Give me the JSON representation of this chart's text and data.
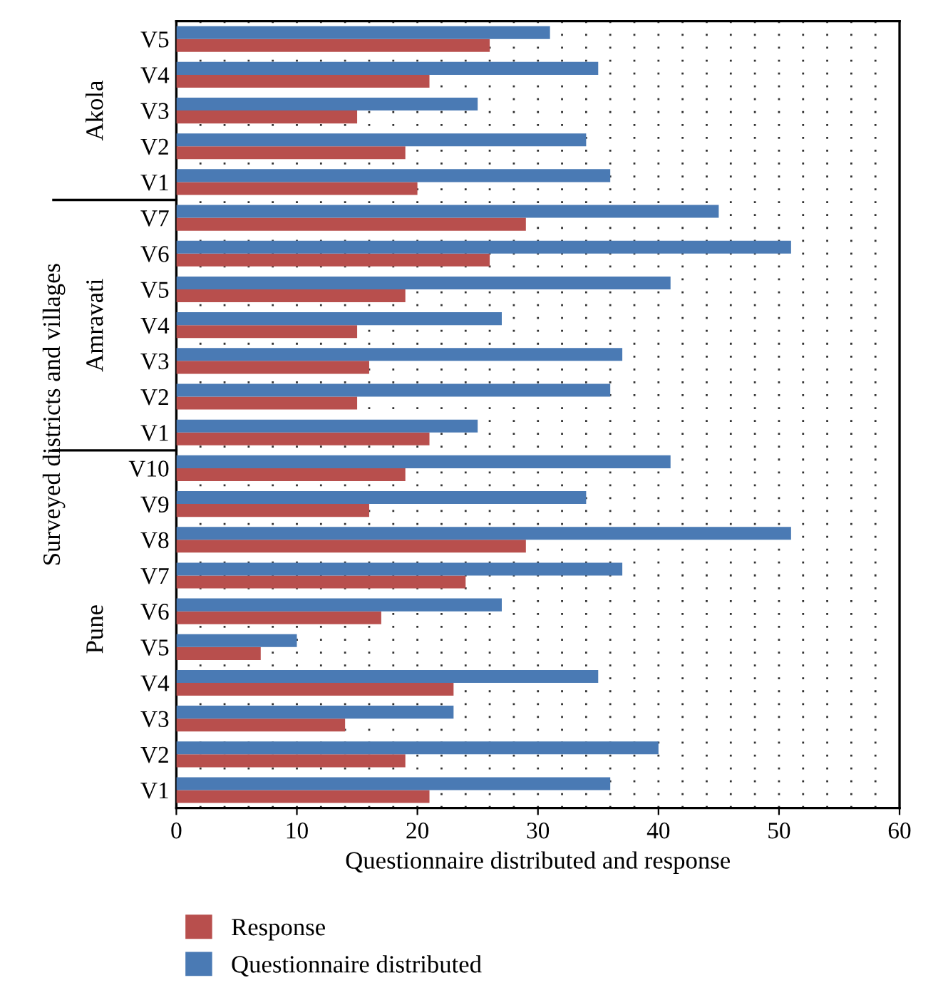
{
  "chart_data": {
    "type": "bar",
    "orientation": "horizontal",
    "xlabel": "Questionnaire distributed and response",
    "ylabel": "Surveyed districts and villages",
    "categories": [
      "V5",
      "V4",
      "V3",
      "V2",
      "V1",
      "V7",
      "V6",
      "V5",
      "V4",
      "V3",
      "V2",
      "V1",
      "V10",
      "V9",
      "V8",
      "V7",
      "V6",
      "V5",
      "V4",
      "V3",
      "V2",
      "V1"
    ],
    "annotations": [
      "Akola",
      "Amravati",
      "Pune"
    ],
    "series": [
      {
        "name": "Response",
        "color": "#b84f4d",
        "values": [
          26,
          21,
          15,
          19,
          20,
          29,
          26,
          19,
          15,
          16,
          15,
          21,
          19,
          16,
          29,
          24,
          17,
          7,
          23,
          14,
          19,
          21
        ]
      },
      {
        "name": "Questionnaire distributed",
        "color": "#4a7ab4",
        "values": [
          31,
          35,
          25,
          34,
          36,
          45,
          51,
          41,
          27,
          37,
          36,
          25,
          41,
          34,
          51,
          37,
          27,
          10,
          35,
          23,
          40,
          36
        ]
      }
    ],
    "xlim": [
      0,
      60
    ],
    "xticks": [
      0,
      10,
      20,
      30,
      40,
      50,
      60
    ],
    "grid": "x",
    "line_style": "dotted",
    "legend": "bottom"
  }
}
